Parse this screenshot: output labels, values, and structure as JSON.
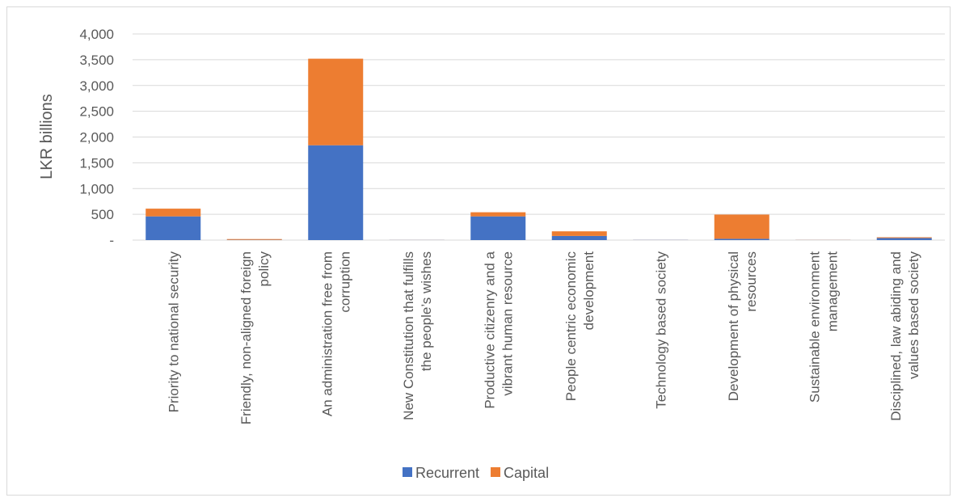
{
  "chart_data": {
    "type": "bar",
    "stacked": true,
    "title": "",
    "xlabel": "",
    "ylabel": "LKR billions",
    "ylim": [
      0,
      4000
    ],
    "yticks": [
      0,
      500,
      1000,
      1500,
      2000,
      2500,
      3000,
      3500,
      4000
    ],
    "ytick_labels": [
      "-",
      "500",
      "1,000",
      "1,500",
      "2,000",
      "2,500",
      "3,000",
      "3,500",
      "4,000"
    ],
    "grid": true,
    "legend_position": "bottom",
    "categories": [
      [
        "Priority to national security"
      ],
      [
        "Friendly, non-aligned foreign",
        "policy"
      ],
      [
        "An administration free from",
        "corruption"
      ],
      [
        "New Constitution that fulfills",
        "the people’s wishes"
      ],
      [
        "Productive citizenry and a",
        "vibrant human resource"
      ],
      [
        "People centric economic",
        "development"
      ],
      [
        "Technology based society"
      ],
      [
        "Development of physical",
        "resources"
      ],
      [
        "Sustainable environment",
        "management"
      ],
      [
        "Disciplined, law abiding and",
        "values based society"
      ]
    ],
    "series": [
      {
        "name": "Recurrent",
        "color": "#4472c4",
        "values": [
          460,
          5,
          1840,
          2,
          460,
          80,
          3,
          25,
          2,
          40
        ]
      },
      {
        "name": "Capital",
        "color": "#ed7d31",
        "values": [
          150,
          15,
          1680,
          1,
          80,
          90,
          1,
          470,
          2,
          15
        ]
      }
    ]
  }
}
